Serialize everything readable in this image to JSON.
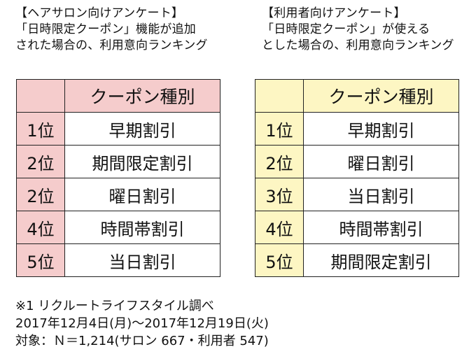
{
  "left": {
    "heading_lines": [
      "【ヘアサロン向けアンケート】",
      "「日時限定クーポン」機能が追加",
      "された場合の、利用意向ランキング"
    ],
    "column_header": "クーポン種別",
    "rows": [
      {
        "rank": "1位",
        "type": "早期割引"
      },
      {
        "rank": "2位",
        "type": "期間限定割引"
      },
      {
        "rank": "2位",
        "type": "曜日割引"
      },
      {
        "rank": "4位",
        "type": "時間帯割引"
      },
      {
        "rank": "5位",
        "type": "当日割引"
      }
    ],
    "tint_color": "#f5cccc"
  },
  "right": {
    "heading_lines": [
      "【利用者向けアンケート】",
      "「日時限定クーポン」が使える",
      "とした場合の、利用意向ランキング"
    ],
    "column_header": "クーポン種別",
    "rows": [
      {
        "rank": "1位",
        "type": "早期割引"
      },
      {
        "rank": "2位",
        "type": "曜日割引"
      },
      {
        "rank": "3位",
        "type": "当日割引"
      },
      {
        "rank": "4位",
        "type": "時間帯割引"
      },
      {
        "rank": "5位",
        "type": "期間限定割引"
      }
    ],
    "tint_color": "#fdf6c3"
  },
  "footer_lines": [
    "※1 リクルートライフスタイル調べ",
    "2017年12月4日(月)～2017年12月19日(火)",
    "対象：Ｎ＝1,214(サロン 667・利用者 547)"
  ]
}
